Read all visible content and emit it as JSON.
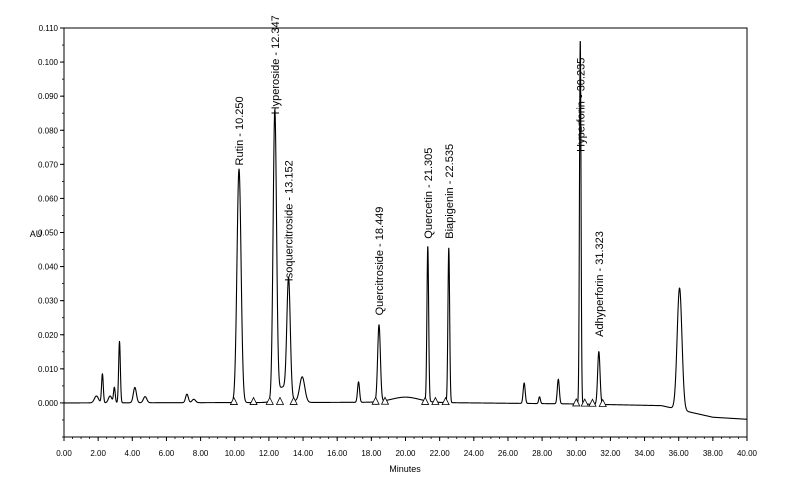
{
  "chart_data": {
    "type": "line",
    "xlabel": "Minutes",
    "ylabel": "AU",
    "xlim": [
      0,
      40
    ],
    "ylim": [
      -0.01,
      0.11
    ],
    "x_ticks": [
      "0.00",
      "2.00",
      "4.00",
      "6.00",
      "8.00",
      "10.00",
      "12.00",
      "14.00",
      "16.00",
      "18.00",
      "20.00",
      "22.00",
      "24.00",
      "26.00",
      "28.00",
      "30.00",
      "32.00",
      "34.00",
      "36.00",
      "38.00",
      "40.00"
    ],
    "y_ticks": [
      "0.000",
      "0.010",
      "0.020",
      "0.030",
      "0.040",
      "0.050",
      "0.060",
      "0.070",
      "0.080",
      "0.090",
      "0.100",
      "0.110"
    ],
    "grid": false,
    "baseline": [
      [
        0.0,
        0.0
      ],
      [
        10.0,
        0.0001
      ],
      [
        20.0,
        0.0002
      ],
      [
        30.0,
        -0.0003
      ],
      [
        35.0,
        -0.0008
      ],
      [
        38.0,
        -0.0042
      ],
      [
        40.0,
        -0.0048
      ]
    ],
    "peaks": [
      {
        "rt": 1.9,
        "height": 0.002,
        "width": 0.12
      },
      {
        "rt": 2.25,
        "height": 0.0085,
        "width": 0.05
      },
      {
        "rt": 2.7,
        "height": 0.002,
        "width": 0.1
      },
      {
        "rt": 2.95,
        "height": 0.0045,
        "width": 0.05
      },
      {
        "rt": 3.25,
        "height": 0.018,
        "width": 0.05
      },
      {
        "rt": 4.15,
        "height": 0.0045,
        "width": 0.09
      },
      {
        "rt": 4.75,
        "height": 0.0018,
        "width": 0.1
      },
      {
        "rt": 7.2,
        "height": 0.0025,
        "width": 0.08
      },
      {
        "rt": 7.6,
        "height": 0.001,
        "width": 0.1
      },
      {
        "rt": 10.25,
        "height": 0.0685,
        "width": 0.12
      },
      {
        "rt": 12.347,
        "height": 0.084,
        "width": 0.1
      },
      {
        "rt": 12.8,
        "height": 0.0045,
        "width": 0.35
      },
      {
        "rt": 13.152,
        "height": 0.034,
        "width": 0.1
      },
      {
        "rt": 13.95,
        "height": 0.0075,
        "width": 0.15
      },
      {
        "rt": 17.25,
        "height": 0.006,
        "width": 0.06
      },
      {
        "rt": 18.449,
        "height": 0.0225,
        "width": 0.08
      },
      {
        "rt": 20.0,
        "height": 0.0015,
        "width": 0.8
      },
      {
        "rt": 21.305,
        "height": 0.0455,
        "width": 0.05
      },
      {
        "rt": 22.535,
        "height": 0.0455,
        "width": 0.05
      },
      {
        "rt": 26.95,
        "height": 0.006,
        "width": 0.06
      },
      {
        "rt": 27.85,
        "height": 0.002,
        "width": 0.05
      },
      {
        "rt": 28.95,
        "height": 0.0072,
        "width": 0.06
      },
      {
        "rt": 30.235,
        "height": 0.107,
        "width": 0.045
      },
      {
        "rt": 31.323,
        "height": 0.0155,
        "width": 0.07
      },
      {
        "rt": 36.05,
        "height": 0.0357,
        "width": 0.14
      }
    ],
    "annotations": [
      {
        "label": "Rutin - 10.250",
        "rt": 10.25,
        "y": 0.0685
      },
      {
        "label": "Hyperoside - 12.347",
        "rt": 12.347,
        "y": 0.0835
      },
      {
        "label": "Isoquercitroside - 13.152",
        "rt": 13.152,
        "y": 0.0345
      },
      {
        "label": "Quercitroside - 18.449",
        "rt": 18.449,
        "y": 0.0245
      },
      {
        "label": "Quercetin - 21.305",
        "rt": 21.305,
        "y": 0.047
      },
      {
        "label": "Biapigenin - 22.535",
        "rt": 22.535,
        "y": 0.047
      },
      {
        "label": "Hyperforin - 30.235",
        "rt": 30.235,
        "y": 0.0725
      },
      {
        "label": "Adhyperforin - 31.323",
        "rt": 31.323,
        "y": 0.0182
      }
    ],
    "integration_markers": [
      9.95,
      11.1,
      12.05,
      12.65,
      13.45,
      18.25,
      18.8,
      21.15,
      21.75,
      22.35,
      30.0,
      30.5,
      30.95,
      31.55
    ]
  }
}
